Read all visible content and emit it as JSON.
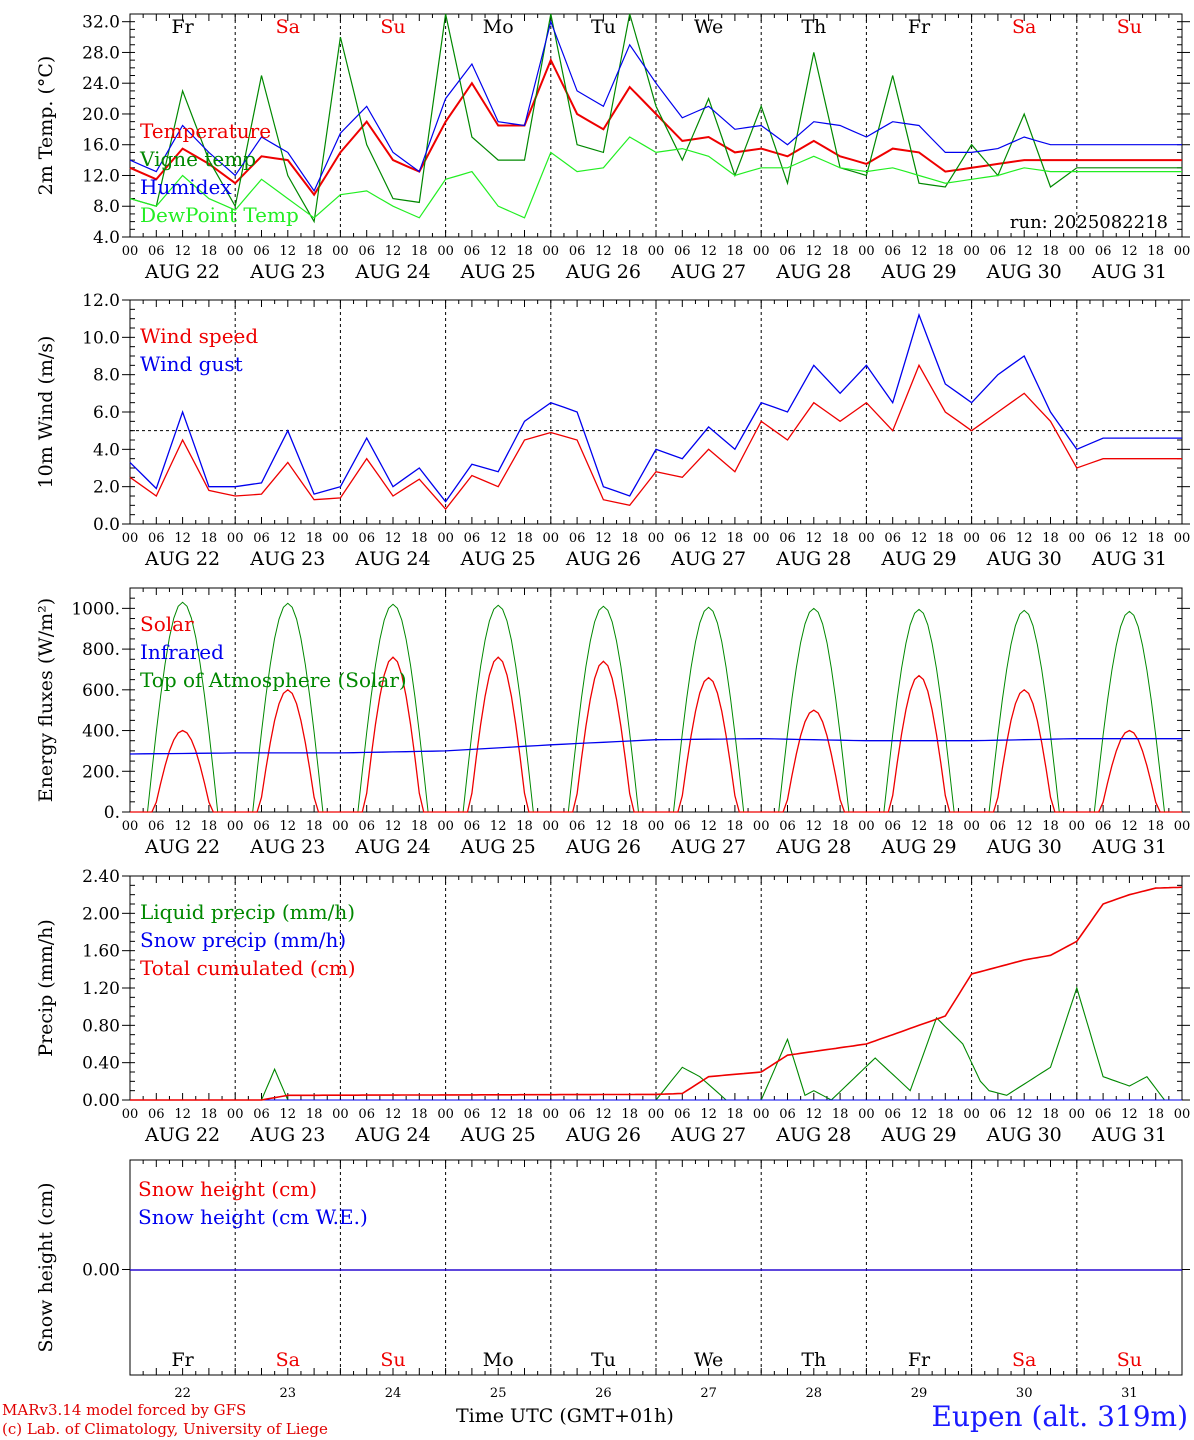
{
  "footer": {
    "credit_line1": "MARv3.14 model forced by GFS",
    "credit_line2": "(c) Lab. of Climatology, University of Liege",
    "station": "Eupen (alt. 319m)",
    "xaxis_title": "Time UTC (GMT+01h)"
  },
  "colors": {
    "red": "#ee0000",
    "green": "#008800",
    "blue": "#0000ee",
    "lightgreen": "#22ee22"
  },
  "chart_data": [
    {
      "type": "line",
      "ylabel": "2m Temp. (°C)",
      "ylim": [
        4,
        33
      ],
      "yticks": [
        "4.0",
        "8.0",
        "12.0",
        "16.0",
        "20.0",
        "24.0",
        "28.0",
        "32.0"
      ],
      "ytick_values": [
        4,
        8,
        12,
        16,
        20,
        24,
        28,
        32
      ],
      "x_days": [
        "AUG 22",
        "AUG 23",
        "AUG 24",
        "AUG 25",
        "AUG 26",
        "AUG 27",
        "AUG 28",
        "AUG 29",
        "AUG 30",
        "AUG 31"
      ],
      "x_hours": [
        "00",
        "06",
        "12",
        "18"
      ],
      "weekdays": [
        "Fr",
        "Sa",
        "Su",
        "Mo",
        "Tu",
        "We",
        "Th",
        "Fr",
        "Sa",
        "Su"
      ],
      "annotation": "run: 2025082218",
      "series": [
        {
          "name": "Temperature",
          "color": "#ee0000",
          "x_hours": [
            0,
            6,
            12,
            18,
            24,
            30,
            36,
            42,
            48,
            54,
            60,
            66,
            72,
            78,
            84,
            90,
            96,
            102,
            108,
            114,
            120,
            126,
            132,
            138,
            144,
            150,
            156,
            162,
            168,
            174,
            180,
            186,
            192,
            198,
            204,
            210,
            216,
            222,
            228,
            234,
            240
          ],
          "values": [
            13,
            11.5,
            15.5,
            13.5,
            11,
            14.5,
            14,
            9.5,
            15,
            19,
            14,
            12.5,
            19,
            24,
            18.5,
            18.5,
            27,
            20,
            18,
            23.5,
            20,
            16.5,
            17,
            15,
            15.5,
            14.5,
            16.5,
            14.5,
            13.5,
            15.5,
            15,
            12.5,
            13,
            13.5,
            14,
            14,
            14,
            14,
            14,
            14,
            14
          ]
        },
        {
          "name": "Vigne temp",
          "color": "#008800",
          "x_hours": [
            0,
            6,
            12,
            18,
            24,
            30,
            36,
            42,
            48,
            54,
            60,
            66,
            72,
            78,
            84,
            90,
            96,
            102,
            108,
            114,
            120,
            126,
            132,
            138,
            144,
            150,
            156,
            162,
            168,
            174,
            180,
            186,
            192,
            198,
            204,
            210,
            216,
            222,
            228,
            234,
            240
          ],
          "values": [
            9,
            8,
            23,
            14,
            8,
            25,
            12,
            6,
            30,
            16,
            9,
            8.5,
            33,
            17,
            14,
            14,
            33,
            16,
            15,
            33,
            21,
            14,
            22,
            12,
            21,
            11,
            28,
            13,
            12,
            25,
            11,
            10.5,
            16,
            12,
            20,
            10.5,
            13,
            13,
            13,
            13,
            13
          ]
        },
        {
          "name": "Humidex",
          "color": "#0000ee",
          "x_hours": [
            0,
            6,
            12,
            18,
            24,
            30,
            36,
            42,
            48,
            54,
            60,
            66,
            72,
            78,
            84,
            90,
            96,
            102,
            108,
            114,
            120,
            126,
            132,
            138,
            144,
            150,
            156,
            162,
            168,
            174,
            180,
            186,
            192,
            198,
            204,
            210,
            216,
            222,
            228,
            234,
            240
          ],
          "values": [
            14,
            12.5,
            18.5,
            15,
            12,
            17,
            15,
            10,
            17.5,
            21,
            15,
            12.5,
            22,
            26.5,
            19,
            18.5,
            32,
            23,
            21,
            29,
            24,
            19.5,
            21,
            18,
            18.5,
            16,
            19,
            18.5,
            17,
            19,
            18.5,
            15,
            15,
            15.5,
            17,
            16,
            16,
            16,
            16,
            16,
            16
          ]
        },
        {
          "name": "DewPoint Temp",
          "color": "#22ee22",
          "x_hours": [
            0,
            6,
            12,
            18,
            24,
            30,
            36,
            42,
            48,
            54,
            60,
            66,
            72,
            78,
            84,
            90,
            96,
            102,
            108,
            114,
            120,
            126,
            132,
            138,
            144,
            150,
            156,
            162,
            168,
            174,
            180,
            186,
            192,
            198,
            204,
            210,
            216,
            222,
            228,
            234,
            240
          ],
          "values": [
            9,
            8,
            12,
            9,
            7.5,
            11.5,
            9,
            6.5,
            9.5,
            10,
            8,
            6.5,
            11.5,
            12.5,
            8,
            6.5,
            15,
            12.5,
            13,
            17,
            15,
            15.5,
            14.5,
            12,
            13,
            13,
            14.5,
            13,
            12.5,
            13,
            12,
            11,
            11.5,
            12,
            13,
            12.5,
            12.5,
            12.5,
            12.5,
            12.5,
            12.5
          ]
        }
      ]
    },
    {
      "type": "line",
      "ylabel": "10m Wind (m/s)",
      "ylim": [
        0,
        12
      ],
      "yticks": [
        "0.0",
        "2.0",
        "4.0",
        "6.0",
        "8.0",
        "10.0",
        "12.0"
      ],
      "ytick_values": [
        0,
        2,
        4,
        6,
        8,
        10,
        12
      ],
      "reference_line": 5,
      "x_days": [
        "AUG 22",
        "AUG 23",
        "AUG 24",
        "AUG 25",
        "AUG 26",
        "AUG 27",
        "AUG 28",
        "AUG 29",
        "AUG 30",
        "AUG 31"
      ],
      "series": [
        {
          "name": "Wind speed",
          "color": "#ee0000",
          "x_hours": [
            0,
            6,
            12,
            18,
            24,
            30,
            36,
            42,
            48,
            54,
            60,
            66,
            72,
            78,
            84,
            90,
            96,
            102,
            108,
            114,
            120,
            126,
            132,
            138,
            144,
            150,
            156,
            162,
            168,
            174,
            180,
            186,
            192,
            198,
            204,
            210,
            216,
            222,
            228,
            234,
            240
          ],
          "values": [
            2.5,
            1.5,
            4.5,
            1.8,
            1.5,
            1.6,
            3.3,
            1.3,
            1.4,
            3.5,
            1.5,
            2.4,
            0.8,
            2.6,
            2.0,
            4.5,
            4.9,
            4.5,
            1.3,
            1.0,
            2.8,
            2.5,
            4.0,
            2.8,
            5.5,
            4.5,
            6.5,
            5.5,
            6.5,
            5.0,
            8.5,
            6.0,
            5.0,
            6.0,
            7.0,
            5.5,
            3.0,
            3.5,
            3.5,
            3.5,
            3.5
          ]
        },
        {
          "name": "Wind gust",
          "color": "#0000ee",
          "x_hours": [
            0,
            6,
            12,
            18,
            24,
            30,
            36,
            42,
            48,
            54,
            60,
            66,
            72,
            78,
            84,
            90,
            96,
            102,
            108,
            114,
            120,
            126,
            132,
            138,
            144,
            150,
            156,
            162,
            168,
            174,
            180,
            186,
            192,
            198,
            204,
            210,
            216,
            222,
            228,
            234,
            240
          ],
          "values": [
            3.3,
            1.9,
            6.0,
            2.0,
            2.0,
            2.2,
            5.0,
            1.6,
            2.0,
            4.6,
            2.0,
            3.0,
            1.2,
            3.2,
            2.8,
            5.5,
            6.5,
            6.0,
            2.0,
            1.5,
            4.0,
            3.5,
            5.2,
            4.0,
            6.5,
            6.0,
            8.5,
            7.0,
            8.5,
            6.5,
            11.2,
            7.5,
            6.5,
            8.0,
            9.0,
            6.0,
            4.0,
            4.6,
            4.6,
            4.6,
            4.6
          ]
        }
      ]
    },
    {
      "type": "line",
      "ylabel": "Energy fluxes (W/m²)",
      "ylim": [
        0,
        1100
      ],
      "yticks": [
        "0.",
        "200.",
        "400.",
        "600.",
        "800.",
        "1000."
      ],
      "ytick_values": [
        0,
        200,
        400,
        600,
        800,
        1000
      ],
      "x_days": [
        "AUG 22",
        "AUG 23",
        "AUG 24",
        "AUG 25",
        "AUG 26",
        "AUG 27",
        "AUG 28",
        "AUG 29",
        "AUG 30",
        "AUG 31"
      ],
      "series": [
        {
          "name": "Solar",
          "color": "#ee0000",
          "peaks": [
            400,
            600,
            760,
            760,
            740,
            660,
            500,
            670,
            600,
            400
          ]
        },
        {
          "name": "Infrared",
          "color": "#0000ee",
          "x_hours": [
            0,
            24,
            48,
            72,
            96,
            120,
            144,
            168,
            192,
            216,
            240
          ],
          "values": [
            285,
            290,
            290,
            300,
            330,
            355,
            360,
            350,
            350,
            360,
            360
          ]
        },
        {
          "name": "Top of Atmosphere (Solar)",
          "color": "#008800",
          "peaks": [
            1030,
            1025,
            1020,
            1015,
            1010,
            1005,
            1000,
            995,
            990,
            985
          ]
        }
      ]
    },
    {
      "type": "line",
      "ylabel": "Precip (mm/h)",
      "ylim": [
        0,
        2.4
      ],
      "yticks": [
        "0.00",
        "0.40",
        "0.80",
        "1.20",
        "1.60",
        "2.00",
        "2.40"
      ],
      "ytick_values": [
        0,
        0.4,
        0.8,
        1.2,
        1.6,
        2.0,
        2.4
      ],
      "x_days": [
        "AUG 22",
        "AUG 23",
        "AUG 24",
        "AUG 25",
        "AUG 26",
        "AUG 27",
        "AUG 28",
        "AUG 29",
        "AUG 30",
        "AUG 31"
      ],
      "series": [
        {
          "name": "Liquid precip (mm/h)",
          "color": "#008800",
          "x_hours": [
            0,
            30,
            33,
            36,
            120,
            126,
            130,
            136,
            144,
            150,
            154,
            156,
            160,
            170,
            178,
            184,
            190,
            194,
            196,
            200,
            210,
            216,
            222,
            228,
            232,
            236,
            240
          ],
          "values": [
            0,
            0,
            0.33,
            0,
            0,
            0.35,
            0.25,
            0,
            0,
            0.65,
            0.05,
            0.1,
            0,
            0.45,
            0.1,
            0.88,
            0.6,
            0.2,
            0.1,
            0.05,
            0.35,
            1.2,
            0.25,
            0.15,
            0.25,
            0,
            0
          ]
        },
        {
          "name": "Snow precip (mm/h)",
          "color": "#0000ee",
          "x_hours": [
            0,
            240
          ],
          "values": [
            0,
            0
          ]
        },
        {
          "name": "Total cumulated (cm)",
          "color": "#ee0000",
          "x_hours": [
            0,
            30,
            36,
            120,
            126,
            132,
            144,
            150,
            156,
            168,
            186,
            192,
            204,
            210,
            216,
            222,
            228,
            234,
            240
          ],
          "values": [
            0,
            0,
            0.05,
            0.06,
            0.07,
            0.25,
            0.3,
            0.48,
            0.52,
            0.6,
            0.9,
            1.35,
            1.5,
            1.55,
            1.7,
            2.1,
            2.2,
            2.27,
            2.28
          ]
        }
      ]
    },
    {
      "type": "line",
      "ylabel": "Snow height (cm)",
      "yticks": [
        "0.00"
      ],
      "ytick_values": [
        0
      ],
      "x_days": [
        "22",
        "23",
        "24",
        "25",
        "26",
        "27",
        "28",
        "29",
        "30",
        "31"
      ],
      "weekdays": [
        "Fr",
        "Sa",
        "Su",
        "Mo",
        "Tu",
        "We",
        "Th",
        "Fr",
        "Sa",
        "Su"
      ],
      "series": [
        {
          "name": "Snow height (cm)",
          "color": "#ee0000",
          "x_hours": [
            0,
            240
          ],
          "values": [
            0,
            0
          ]
        },
        {
          "name": "Snow height (cm W.E.)",
          "color": "#0000ee",
          "x_hours": [
            0,
            240
          ],
          "values": [
            0,
            0
          ]
        }
      ]
    }
  ]
}
